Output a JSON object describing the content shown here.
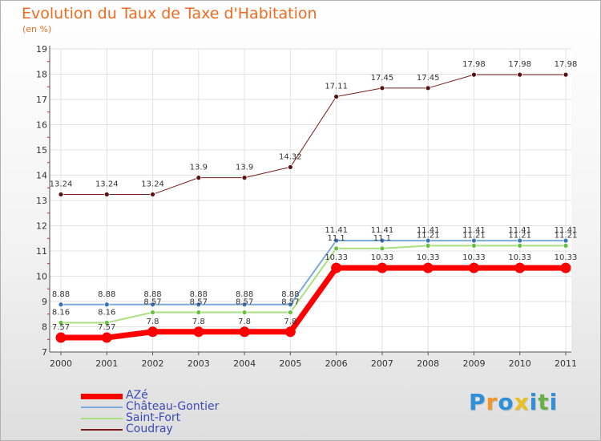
{
  "brand": {
    "letters": [
      "P",
      "r",
      "o",
      "x",
      "i",
      "t",
      "i"
    ],
    "colors": [
      "#2f8fd8",
      "#f0962a",
      "#2f8fd8",
      "#e8c020",
      "#2f8fd8",
      "#6ab04c",
      "#2f8fd8"
    ]
  },
  "chart_data": {
    "type": "line",
    "title": "Evolution du Taux de Taxe d'Habitation",
    "subtitle": "(en %)",
    "xlabel": "",
    "ylabel": "",
    "categories": [
      "2000",
      "2001",
      "2002",
      "2003",
      "2004",
      "2005",
      "2006",
      "2007",
      "2008",
      "2009",
      "2010",
      "2011"
    ],
    "ylim": [
      7,
      19
    ],
    "yticks": [
      "7",
      "8",
      "9",
      "10",
      "11",
      "12",
      "13",
      "14",
      "15",
      "16",
      "17",
      "18",
      "19"
    ],
    "series": [
      {
        "name": "Coudray",
        "color": "#7a1c1c",
        "marker": "#5a1010",
        "width": 1,
        "values": [
          13.24,
          13.24,
          13.24,
          13.9,
          13.9,
          14.32,
          17.11,
          17.45,
          17.45,
          17.98,
          17.98,
          17.98
        ],
        "labels": [
          "13.24",
          "13.24",
          "13.24",
          "13.9",
          "13.9",
          "14.32",
          "17.11",
          "17.45",
          "17.45",
          "17.98",
          "17.98",
          "17.98"
        ]
      },
      {
        "name": "Château-Gontier",
        "color": "#7aaad8",
        "marker": "#3a72b8",
        "width": 2,
        "values": [
          8.88,
          8.88,
          8.88,
          8.88,
          8.88,
          8.88,
          11.41,
          11.41,
          11.41,
          11.41,
          11.41,
          11.41
        ],
        "labels": [
          "8.88",
          "8.88",
          "8.88",
          "8.88",
          "8.88",
          "8.88",
          "11.41",
          "11.41",
          "11.41",
          "11.41",
          "11.41",
          "11.41"
        ]
      },
      {
        "name": "Saint-Fort",
        "color": "#a8e080",
        "marker": "#68c040",
        "width": 2,
        "values": [
          8.16,
          8.16,
          8.57,
          8.57,
          8.57,
          8.57,
          11.1,
          11.1,
          11.21,
          11.21,
          11.21,
          11.21
        ],
        "labels": [
          "8.16",
          "8.16",
          "8.57",
          "8.57",
          "8.57",
          "8.57",
          "11.1",
          "11.1",
          "11.21",
          "11.21",
          "11.21",
          "11.21"
        ]
      },
      {
        "name": "AZé",
        "color": "#ff0000",
        "marker": "#ff0000",
        "width": 7,
        "values": [
          7.57,
          7.57,
          7.8,
          7.8,
          7.8,
          7.8,
          10.33,
          10.33,
          10.33,
          10.33,
          10.33,
          10.33
        ],
        "labels": [
          "7.57",
          "7.57",
          "7.8",
          "7.8",
          "7.8",
          "7.8",
          "10.33",
          "10.33",
          "10.33",
          "10.33",
          "10.33",
          "10.33"
        ]
      }
    ],
    "legend_order": [
      "AZé",
      "Château-Gontier",
      "Saint-Fort",
      "Coudray"
    ]
  }
}
